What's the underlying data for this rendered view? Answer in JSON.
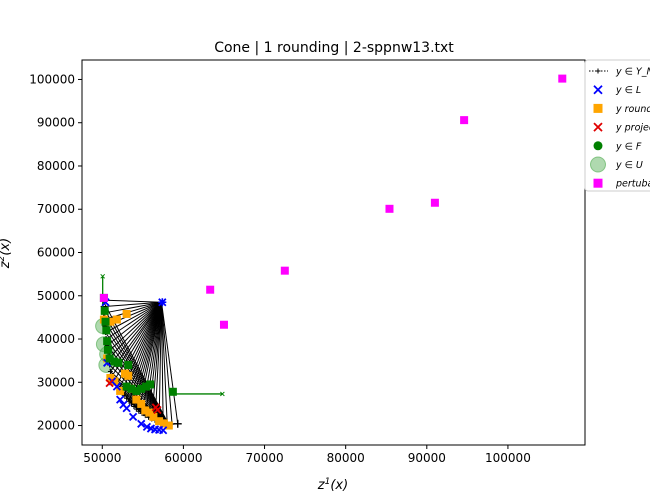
{
  "chart_data": {
    "type": "scatter",
    "title": "Cone | 1 rounding | 2-sppnw13.txt",
    "xlabel": "z^1(x)",
    "ylabel": "z^2(x)",
    "xlim": [
      47500,
      109500
    ],
    "ylim": [
      15500,
      104500
    ],
    "x_ticks": [
      50000,
      60000,
      70000,
      80000,
      90000,
      100000
    ],
    "y_ticks": [
      20000,
      30000,
      40000,
      50000,
      60000,
      70000,
      80000,
      90000,
      100000
    ],
    "x_tick_labels": [
      "50000",
      "60000",
      "70000",
      "80000",
      "90000",
      "100000"
    ],
    "y_tick_labels": [
      "20000",
      "30000",
      "40000",
      "50000",
      "60000",
      "70000",
      "80000",
      "90000",
      "100000"
    ],
    "grid": false,
    "legend_position": "top-right",
    "colors": {
      "YN": "#000000",
      "L": "#0000ff",
      "rounding": "#ffa500",
      "projection": "#e00000",
      "F": "#008000",
      "U": "#4daa4d",
      "perturbation": "#ff00ff"
    },
    "legend": [
      {
        "key": "YN",
        "label": "y ∈ Y_N",
        "marker": "dotline"
      },
      {
        "key": "L",
        "label": "y ∈ L",
        "marker": "x"
      },
      {
        "key": "rounding",
        "label": "y rounding",
        "marker": "square"
      },
      {
        "key": "projection",
        "label": "y projection",
        "marker": "x"
      },
      {
        "key": "F",
        "label": "y ∈ F",
        "marker": "circle"
      },
      {
        "key": "U",
        "label": "y ∈ U",
        "marker": "bigcircle"
      },
      {
        "key": "perturbation",
        "label": "pertubation",
        "marker": "square"
      }
    ],
    "series": {
      "YN": [
        [
          50050,
          49000
        ],
        [
          50100,
          47500
        ],
        [
          50150,
          46000
        ],
        [
          50200,
          44500
        ],
        [
          50300,
          43000
        ],
        [
          50400,
          41500
        ],
        [
          50500,
          40000
        ],
        [
          50600,
          38500
        ],
        [
          50700,
          37000
        ],
        [
          50800,
          35500
        ],
        [
          50900,
          34000
        ],
        [
          51000,
          32500
        ],
        [
          51200,
          31500
        ],
        [
          51500,
          30500
        ],
        [
          51800,
          29500
        ],
        [
          52100,
          28600
        ],
        [
          52400,
          27800
        ],
        [
          52700,
          27000
        ],
        [
          53000,
          26300
        ],
        [
          53300,
          25600
        ],
        [
          53600,
          25000
        ],
        [
          53900,
          24400
        ],
        [
          54200,
          23800
        ],
        [
          54500,
          23300
        ],
        [
          54900,
          22800
        ],
        [
          55300,
          22300
        ],
        [
          55700,
          21900
        ],
        [
          56100,
          21500
        ],
        [
          56500,
          21200
        ],
        [
          57000,
          20900
        ],
        [
          57500,
          20700
        ],
        [
          58000,
          20500
        ],
        [
          58600,
          20400
        ],
        [
          59300,
          20400
        ]
      ],
      "L": [
        [
          57400,
          48500
        ],
        [
          50400,
          48500
        ],
        [
          50600,
          34500
        ],
        [
          51200,
          30200
        ],
        [
          52200,
          26000
        ],
        [
          53000,
          24000
        ],
        [
          53800,
          22000
        ],
        [
          54800,
          20400
        ],
        [
          55500,
          19700
        ],
        [
          56000,
          19300
        ],
        [
          56500,
          19100
        ],
        [
          57000,
          19000
        ],
        [
          57500,
          18900
        ],
        [
          51800,
          29000
        ],
        [
          52600,
          24800
        ]
      ],
      "rounding": [
        [
          50200,
          44500
        ],
        [
          51000,
          44000
        ],
        [
          51800,
          44500
        ],
        [
          53000,
          45800
        ],
        [
          50600,
          35500
        ],
        [
          51000,
          31000
        ],
        [
          51500,
          30200
        ],
        [
          52200,
          28000
        ],
        [
          52800,
          32000
        ],
        [
          53200,
          31500
        ],
        [
          53600,
          28500
        ],
        [
          54200,
          26000
        ],
        [
          54800,
          25000
        ],
        [
          55300,
          23500
        ],
        [
          55800,
          23000
        ],
        [
          56300,
          22000
        ],
        [
          57000,
          21000
        ],
        [
          57600,
          20500
        ],
        [
          58200,
          20000
        ]
      ],
      "projection": [
        [
          56600,
          24200
        ],
        [
          56800,
          23600
        ],
        [
          50900,
          29800
        ]
      ],
      "F": [
        [
          50200,
          49500
        ],
        [
          50300,
          46500
        ],
        [
          50400,
          44000
        ],
        [
          50500,
          42000
        ],
        [
          50600,
          39500
        ],
        [
          50700,
          37500
        ],
        [
          50900,
          35500
        ],
        [
          51500,
          34800
        ],
        [
          52000,
          34500
        ],
        [
          53200,
          34000
        ],
        [
          53000,
          29000
        ],
        [
          53600,
          28500
        ],
        [
          54200,
          28000
        ],
        [
          54800,
          28500
        ],
        [
          55400,
          29000
        ],
        [
          55900,
          29500
        ],
        [
          58700,
          27800
        ]
      ],
      "U": [
        [
          50100,
          43000
        ],
        [
          50200,
          38800
        ],
        [
          50500,
          34000
        ],
        [
          50600,
          36500
        ]
      ],
      "perturbation": [
        [
          106700,
          100200
        ],
        [
          94600,
          90600
        ],
        [
          91000,
          71500
        ],
        [
          85400,
          70100
        ],
        [
          72500,
          55800
        ],
        [
          63300,
          51400
        ],
        [
          65000,
          43300
        ],
        [
          50200,
          49500
        ]
      ],
      "cone_apex": [
        [
          57300,
          48500
        ],
        [
          58200,
          20200
        ]
      ],
      "green_segments": [
        [
          [
            50050,
            54500
          ],
          [
            50050,
            46000
          ]
        ],
        [
          [
            58700,
            27300
          ],
          [
            64800,
            27300
          ]
        ]
      ],
      "green_endpoints": [
        [
          50050,
          54500
        ],
        [
          64800,
          27300
        ]
      ]
    }
  }
}
